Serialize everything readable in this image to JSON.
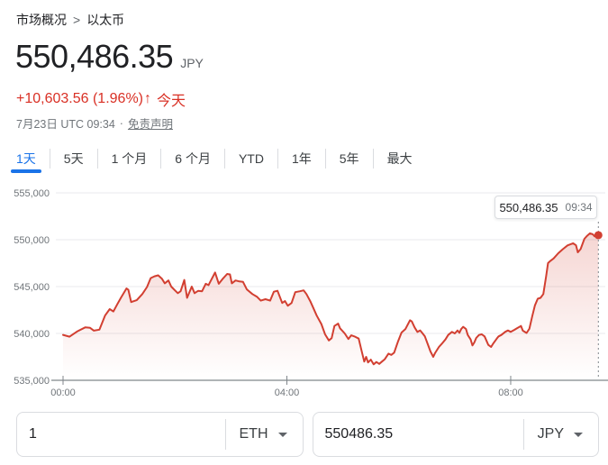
{
  "breadcrumb": {
    "root": "市场概况",
    "separator": ">",
    "current": "以太币"
  },
  "quote": {
    "price": "550,486.35",
    "currency": "JPY",
    "change": "+10,603.56 (1.96%)",
    "arrow": "↑",
    "period_label": "今天",
    "timestamp": "7月23日 UTC 09:34",
    "dot_separator": "·",
    "disclaimer_label": "免责声明"
  },
  "range_tabs": [
    {
      "label": "1天",
      "active": true
    },
    {
      "label": "5天",
      "active": false
    },
    {
      "label": "1 个月",
      "active": false
    },
    {
      "label": "6 个月",
      "active": false
    },
    {
      "label": "YTD",
      "active": false
    },
    {
      "label": "1年",
      "active": false
    },
    {
      "label": "5年",
      "active": false
    },
    {
      "label": "最大",
      "active": false
    }
  ],
  "tooltip": {
    "price": "550,486.35",
    "time": "09:34"
  },
  "converter": {
    "from": {
      "value": "1",
      "unit": "ETH"
    },
    "to": {
      "value": "550486.35",
      "unit": "JPY"
    }
  },
  "colors": {
    "up_red": "#d93025",
    "line_red": "#d23f31",
    "active_blue": "#1a73e8",
    "grid_gray": "#e8eaed",
    "axis_gray": "#80868b",
    "label_gray": "#70757a",
    "border_gray": "#dadce0"
  },
  "chart_data": {
    "type": "line",
    "title": "以太币 (ETH / JPY) 1天走势",
    "line_color": "#d23f31",
    "x_axis": {
      "ticks": [
        "00:00",
        "04:00",
        "08:00"
      ],
      "tick_minutes": [
        0,
        240,
        480
      ],
      "range_minutes": [
        0,
        574
      ]
    },
    "y_axis": {
      "ticks": [
        "555,000",
        "550,000",
        "545,000",
        "540,000",
        "535,000"
      ],
      "tick_values": [
        555000,
        550000,
        545000,
        540000,
        535000
      ],
      "range": [
        535000,
        555000
      ]
    },
    "last_point": {
      "time": "09:34",
      "minutes": 574,
      "price": 550486.35
    },
    "series": [
      [
        0,
        539850
      ],
      [
        7,
        539650
      ],
      [
        15,
        540200
      ],
      [
        24,
        540650
      ],
      [
        29,
        540600
      ],
      [
        33,
        540300
      ],
      [
        39,
        540400
      ],
      [
        45,
        541900
      ],
      [
        50,
        542600
      ],
      [
        54,
        542350
      ],
      [
        58,
        543100
      ],
      [
        62,
        543800
      ],
      [
        68,
        544800
      ],
      [
        70,
        544650
      ],
      [
        73,
        543350
      ],
      [
        79,
        543550
      ],
      [
        85,
        544200
      ],
      [
        90,
        544950
      ],
      [
        94,
        545900
      ],
      [
        98,
        546100
      ],
      [
        102,
        546200
      ],
      [
        106,
        545850
      ],
      [
        109,
        545350
      ],
      [
        113,
        545650
      ],
      [
        116,
        545000
      ],
      [
        120,
        544600
      ],
      [
        123,
        544300
      ],
      [
        126,
        544500
      ],
      [
        130,
        545700
      ],
      [
        133,
        543800
      ],
      [
        138,
        545000
      ],
      [
        141,
        544300
      ],
      [
        145,
        544550
      ],
      [
        149,
        544500
      ],
      [
        153,
        545300
      ],
      [
        156,
        545150
      ],
      [
        158,
        545550
      ],
      [
        163,
        546500
      ],
      [
        167,
        545300
      ],
      [
        171,
        545800
      ],
      [
        176,
        546350
      ],
      [
        179,
        546300
      ],
      [
        181,
        545350
      ],
      [
        185,
        545650
      ],
      [
        189,
        545550
      ],
      [
        193,
        545500
      ],
      [
        197,
        544700
      ],
      [
        203,
        544200
      ],
      [
        208,
        543900
      ],
      [
        212,
        543500
      ],
      [
        217,
        543650
      ],
      [
        222,
        543500
      ],
      [
        226,
        544450
      ],
      [
        230,
        544550
      ],
      [
        235,
        543250
      ],
      [
        238,
        543450
      ],
      [
        241,
        542950
      ],
      [
        245,
        543250
      ],
      [
        249,
        544400
      ],
      [
        254,
        544500
      ],
      [
        258,
        544600
      ],
      [
        261,
        544200
      ],
      [
        265,
        543450
      ],
      [
        268,
        542800
      ],
      [
        272,
        541900
      ],
      [
        277,
        541000
      ],
      [
        281,
        539900
      ],
      [
        285,
        539250
      ],
      [
        288,
        539500
      ],
      [
        291,
        540800
      ],
      [
        295,
        541050
      ],
      [
        297,
        540550
      ],
      [
        302,
        540000
      ],
      [
        306,
        539400
      ],
      [
        309,
        539800
      ],
      [
        313,
        539650
      ],
      [
        317,
        539450
      ],
      [
        320,
        538200
      ],
      [
        323,
        537000
      ],
      [
        325,
        537500
      ],
      [
        327,
        536900
      ],
      [
        330,
        537200
      ],
      [
        333,
        536700
      ],
      [
        336,
        536950
      ],
      [
        339,
        536750
      ],
      [
        342,
        537000
      ],
      [
        345,
        537250
      ],
      [
        349,
        537850
      ],
      [
        352,
        537700
      ],
      [
        355,
        537950
      ],
      [
        359,
        539100
      ],
      [
        363,
        540100
      ],
      [
        367,
        540450
      ],
      [
        372,
        541400
      ],
      [
        374,
        541280
      ],
      [
        377,
        540640
      ],
      [
        380,
        540160
      ],
      [
        383,
        540320
      ],
      [
        385,
        540070
      ],
      [
        388,
        539680
      ],
      [
        391,
        538880
      ],
      [
        394,
        538080
      ],
      [
        397,
        537500
      ],
      [
        399,
        537920
      ],
      [
        403,
        538560
      ],
      [
        406,
        538880
      ],
      [
        410,
        539360
      ],
      [
        413,
        539840
      ],
      [
        417,
        540160
      ],
      [
        420,
        540000
      ],
      [
        423,
        540320
      ],
      [
        425,
        540070
      ],
      [
        427,
        540480
      ],
      [
        429,
        540700
      ],
      [
        432,
        540480
      ],
      [
        434,
        539840
      ],
      [
        437,
        539360
      ],
      [
        439,
        538720
      ],
      [
        441,
        539040
      ],
      [
        443,
        539520
      ],
      [
        446,
        539840
      ],
      [
        449,
        539900
      ],
      [
        452,
        539680
      ],
      [
        456,
        538780
      ],
      [
        459,
        538560
      ],
      [
        461,
        538880
      ],
      [
        465,
        539430
      ],
      [
        467,
        539680
      ],
      [
        470,
        539840
      ],
      [
        474,
        540160
      ],
      [
        477,
        540320
      ],
      [
        480,
        540160
      ],
      [
        484,
        540380
      ],
      [
        487,
        540570
      ],
      [
        491,
        540800
      ],
      [
        493,
        540300
      ],
      [
        497,
        540050
      ],
      [
        500,
        540500
      ],
      [
        503,
        541800
      ],
      [
        506,
        543000
      ],
      [
        509,
        543700
      ],
      [
        512,
        543800
      ],
      [
        515,
        544200
      ],
      [
        518,
        546100
      ],
      [
        520,
        547500
      ],
      [
        522,
        547700
      ],
      [
        526,
        548000
      ],
      [
        531,
        548560
      ],
      [
        536,
        549000
      ],
      [
        541,
        549390
      ],
      [
        547,
        549620
      ],
      [
        550,
        549400
      ],
      [
        552,
        548650
      ],
      [
        555,
        549000
      ],
      [
        559,
        550100
      ],
      [
        562,
        550420
      ],
      [
        565,
        550680
      ],
      [
        568,
        550580
      ],
      [
        570,
        550360
      ],
      [
        574,
        550486.35
      ]
    ]
  }
}
